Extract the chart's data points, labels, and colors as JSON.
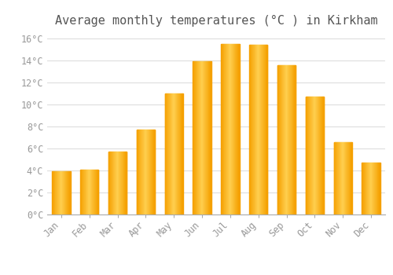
{
  "title": "Average monthly temperatures (°C ) in Kirkham",
  "months": [
    "Jan",
    "Feb",
    "Mar",
    "Apr",
    "May",
    "Jun",
    "Jul",
    "Aug",
    "Sep",
    "Oct",
    "Nov",
    "Dec"
  ],
  "values": [
    3.9,
    4.1,
    5.7,
    7.7,
    11.0,
    13.9,
    15.5,
    15.4,
    13.6,
    10.7,
    6.6,
    4.7
  ],
  "bar_color_center": "#FFD050",
  "bar_color_edge": "#F5A000",
  "background_color": "#FFFFFF",
  "grid_color": "#DDDDDD",
  "ylim": [
    0,
    16.5
  ],
  "yticks": [
    0,
    2,
    4,
    6,
    8,
    10,
    12,
    14,
    16
  ],
  "ytick_labels": [
    "0°C",
    "2°C",
    "4°C",
    "6°C",
    "8°C",
    "10°C",
    "12°C",
    "14°C",
    "16°C"
  ],
  "title_fontsize": 11,
  "tick_fontsize": 8.5,
  "tick_font_color": "#999999",
  "bar_width": 0.65
}
